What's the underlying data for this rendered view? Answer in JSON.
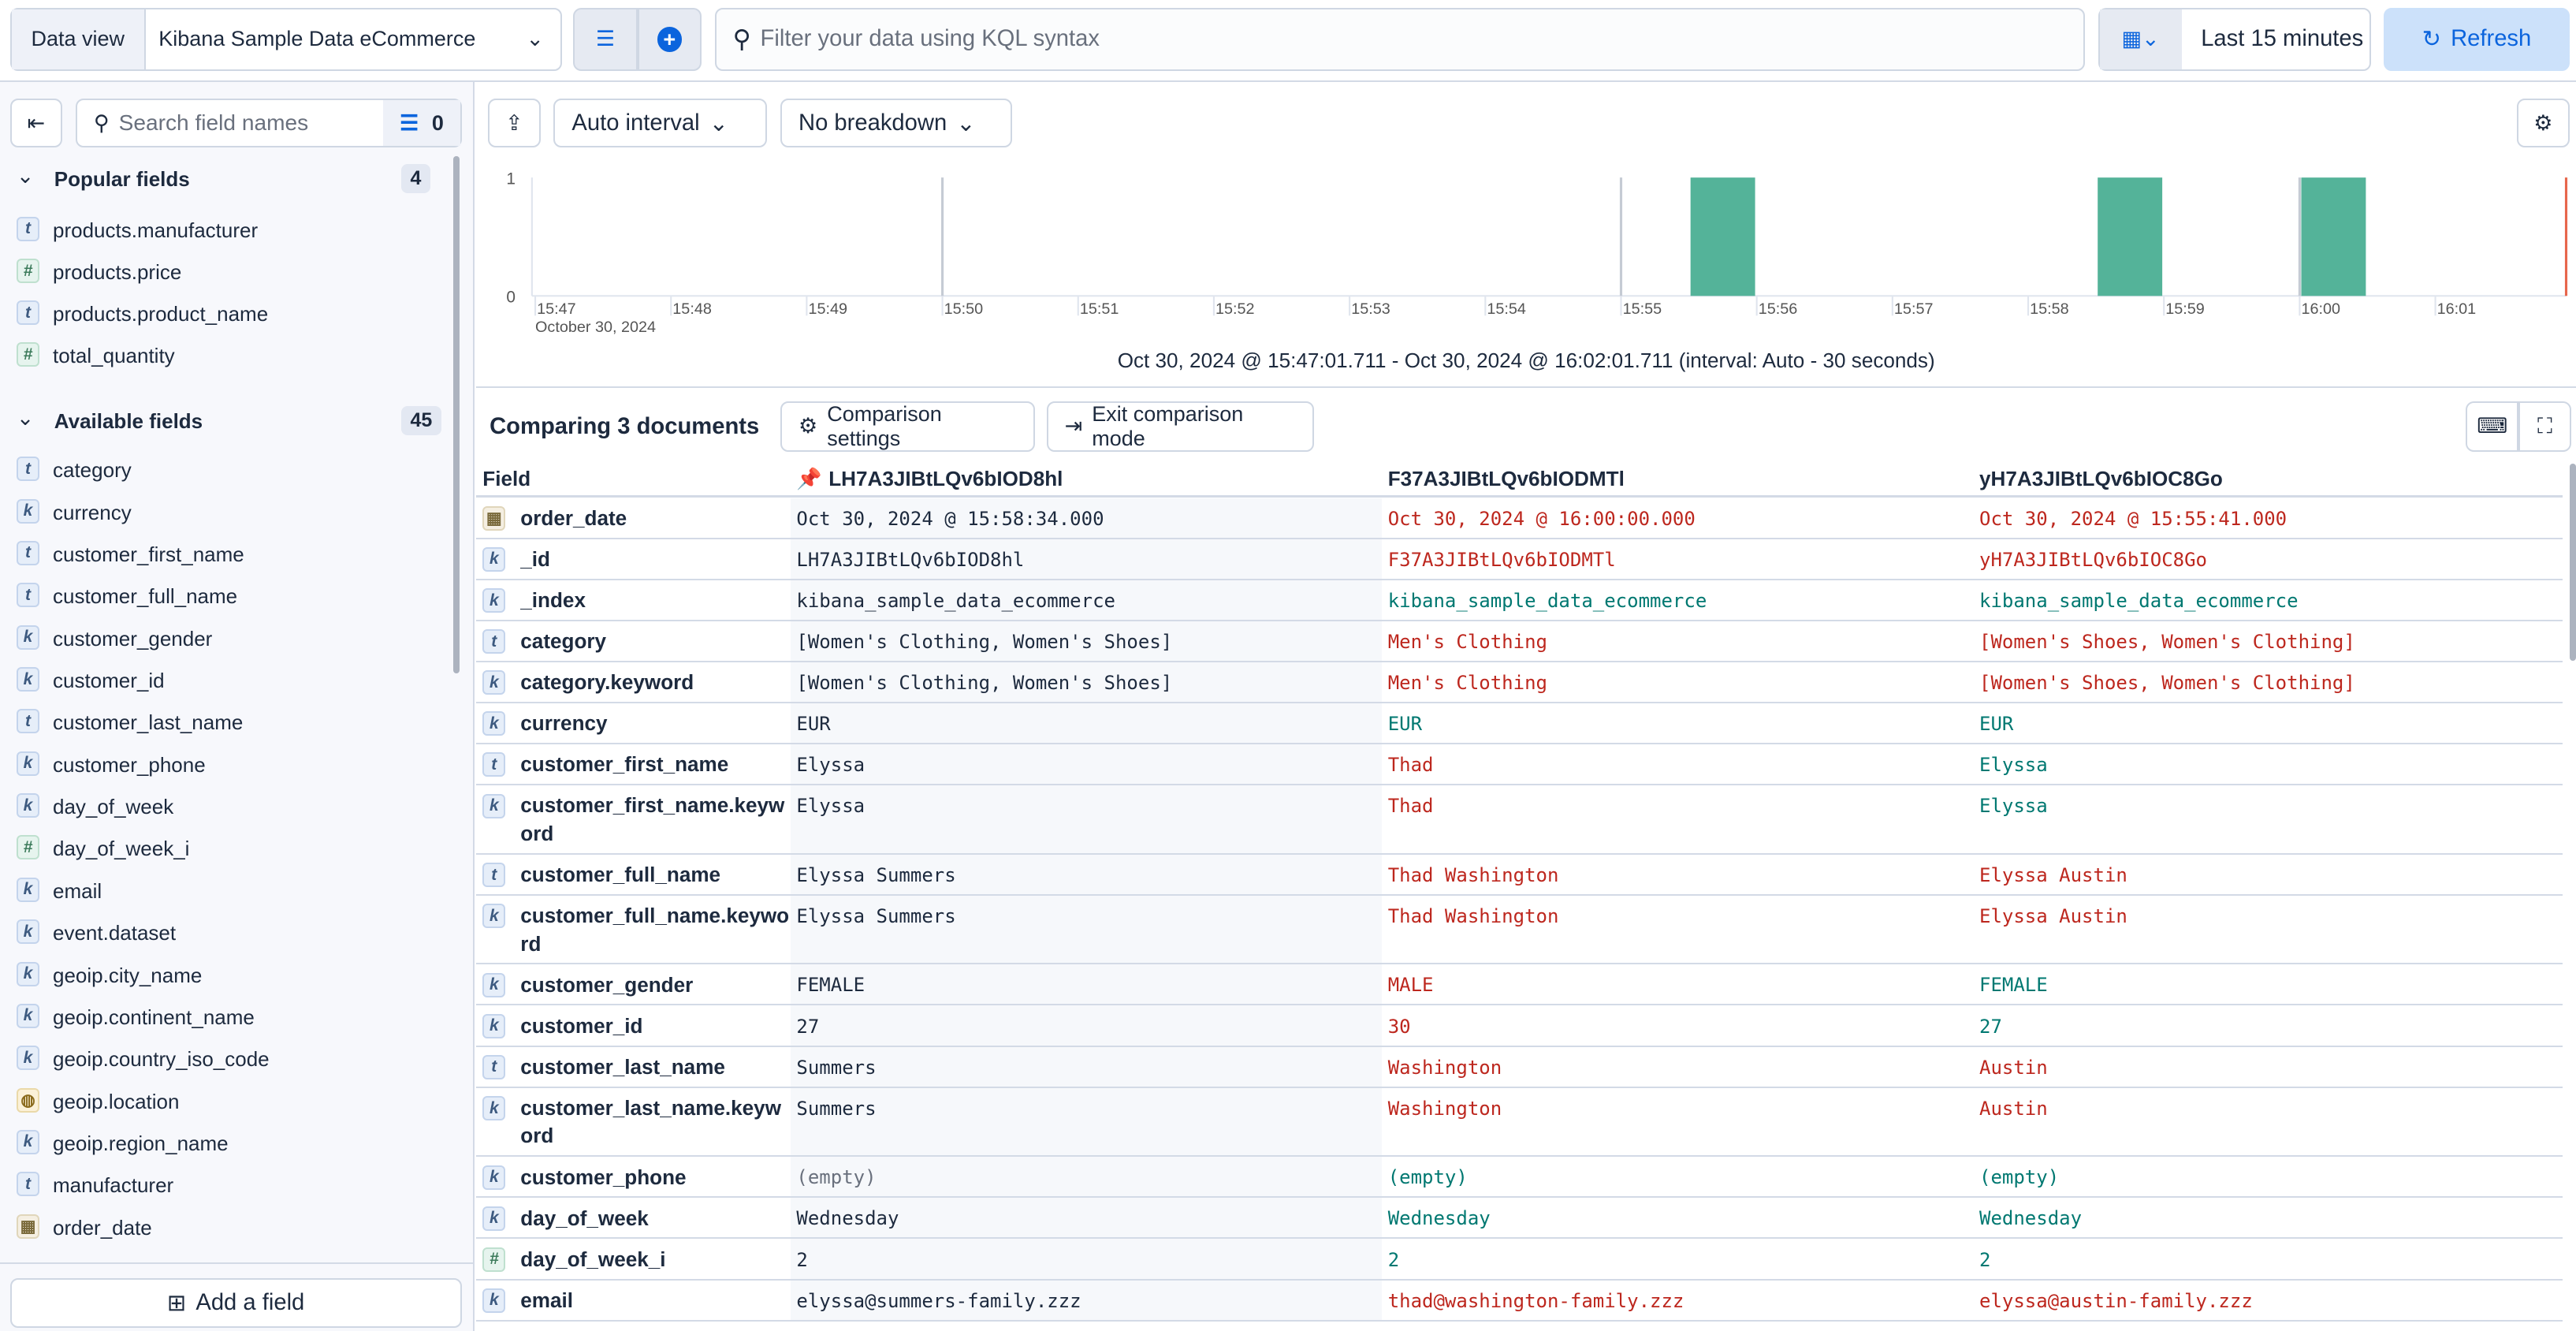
{
  "topbar": {
    "data_view_label": "Data view",
    "data_view_value": "Kibana Sample Data eCommerce",
    "query_placeholder": "Filter your data using KQL syntax",
    "time_range": "Last 15 minutes",
    "refresh_label": "Refresh"
  },
  "sidebar": {
    "search_placeholder": "Search field names",
    "filter_count": "0",
    "popular_title": "Popular fields",
    "popular_count": "4",
    "popular": [
      {
        "type": "t",
        "name": "products.manufacturer"
      },
      {
        "type": "#",
        "name": "products.price"
      },
      {
        "type": "t",
        "name": "products.product_name"
      },
      {
        "type": "#",
        "name": "total_quantity"
      }
    ],
    "available_title": "Available fields",
    "available_count": "45",
    "available": [
      {
        "type": "t",
        "name": "category"
      },
      {
        "type": "k",
        "name": "currency"
      },
      {
        "type": "t",
        "name": "customer_first_name"
      },
      {
        "type": "t",
        "name": "customer_full_name"
      },
      {
        "type": "k",
        "name": "customer_gender"
      },
      {
        "type": "k",
        "name": "customer_id"
      },
      {
        "type": "t",
        "name": "customer_last_name"
      },
      {
        "type": "k",
        "name": "customer_phone"
      },
      {
        "type": "k",
        "name": "day_of_week"
      },
      {
        "type": "#",
        "name": "day_of_week_i"
      },
      {
        "type": "k",
        "name": "email"
      },
      {
        "type": "k",
        "name": "event.dataset"
      },
      {
        "type": "k",
        "name": "geoip.city_name"
      },
      {
        "type": "k",
        "name": "geoip.continent_name"
      },
      {
        "type": "k",
        "name": "geoip.country_iso_code"
      },
      {
        "type": "geo",
        "name": "geoip.location"
      },
      {
        "type": "k",
        "name": "geoip.region_name"
      },
      {
        "type": "t",
        "name": "manufacturer"
      },
      {
        "type": "date",
        "name": "order_date"
      }
    ],
    "add_field_label": "Add a field"
  },
  "chart_toolbar": {
    "interval": "Auto interval",
    "breakdown": "No breakdown"
  },
  "chart_data": {
    "type": "bar",
    "y_ticks": [
      "0",
      "1"
    ],
    "ylim": [
      0,
      1
    ],
    "x_ticks": [
      "15:47",
      "15:48",
      "15:49",
      "15:50",
      "15:51",
      "15:52",
      "15:53",
      "15:54",
      "15:55",
      "15:56",
      "15:57",
      "15:58",
      "15:59",
      "16:00",
      "16:01"
    ],
    "x_sub_label": "October 30, 2024",
    "bars": [
      {
        "start": "15:55:30",
        "value": 1
      },
      {
        "start": "15:58:30",
        "value": 1
      },
      {
        "start": "16:00:00",
        "value": 1
      }
    ],
    "bar_color": "#54b399",
    "caption": "Oct 30, 2024 @ 15:47:01.711 - Oct 30, 2024 @ 16:02:01.711 (interval: Auto - 30 seconds)"
  },
  "comparison": {
    "title": "Comparing 3 documents",
    "settings_label": "Comparison settings",
    "exit_label": "Exit comparison mode",
    "field_header": "Field",
    "docs": [
      "LH7A3JIBtLQv6bIOD8hl",
      "F37A3JIBtLQv6bIODMTl",
      "yH7A3JIBtLQv6bIOC8Go"
    ],
    "colors": {
      "diff": "#bd271e",
      "same": "#007871"
    },
    "rows": [
      {
        "type": "date",
        "field": "order_date",
        "values": [
          "Oct 30, 2024 @ 15:58:34.000",
          "Oct 30, 2024 @ 16:00:00.000",
          "Oct 30, 2024 @ 15:55:41.000"
        ],
        "status": [
          "",
          "diff",
          "diff"
        ]
      },
      {
        "type": "k",
        "field": "_id",
        "values": [
          "LH7A3JIBtLQv6bIOD8hl",
          "F37A3JIBtLQv6bIODMTl",
          "yH7A3JIBtLQv6bIOC8Go"
        ],
        "status": [
          "",
          "diff",
          "diff"
        ]
      },
      {
        "type": "k",
        "field": "_index",
        "values": [
          "kibana_sample_data_ecommerce",
          "kibana_sample_data_ecommerce",
          "kibana_sample_data_ecommerce"
        ],
        "status": [
          "",
          "same",
          "same"
        ]
      },
      {
        "type": "t",
        "field": "category",
        "values": [
          "[Women's Clothing, Women's Shoes]",
          "Men's Clothing",
          "[Women's Shoes, Women's Clothing]"
        ],
        "status": [
          "",
          "diff",
          "diff"
        ]
      },
      {
        "type": "k",
        "field": "category.keyword",
        "values": [
          "[Women's Clothing, Women's Shoes]",
          "Men's Clothing",
          "[Women's Shoes, Women's Clothing]"
        ],
        "status": [
          "",
          "diff",
          "diff"
        ]
      },
      {
        "type": "k",
        "field": "currency",
        "values": [
          "EUR",
          "EUR",
          "EUR"
        ],
        "status": [
          "",
          "same",
          "same"
        ]
      },
      {
        "type": "t",
        "field": "customer_first_name",
        "values": [
          "Elyssa",
          "Thad",
          "Elyssa"
        ],
        "status": [
          "",
          "diff",
          "same"
        ]
      },
      {
        "type": "k",
        "field": "customer_first_name.keyword",
        "values": [
          "Elyssa",
          "Thad",
          "Elyssa"
        ],
        "status": [
          "",
          "diff",
          "same"
        ]
      },
      {
        "type": "t",
        "field": "customer_full_name",
        "values": [
          "Elyssa Summers",
          "Thad Washington",
          "Elyssa Austin"
        ],
        "status": [
          "",
          "diff",
          "diff"
        ]
      },
      {
        "type": "k",
        "field": "customer_full_name.keyword",
        "values": [
          "Elyssa Summers",
          "Thad Washington",
          "Elyssa Austin"
        ],
        "status": [
          "",
          "diff",
          "diff"
        ]
      },
      {
        "type": "k",
        "field": "customer_gender",
        "values": [
          "FEMALE",
          "MALE",
          "FEMALE"
        ],
        "status": [
          "",
          "diff",
          "same"
        ]
      },
      {
        "type": "k",
        "field": "customer_id",
        "values": [
          "27",
          "30",
          "27"
        ],
        "status": [
          "",
          "diff",
          "same"
        ]
      },
      {
        "type": "t",
        "field": "customer_last_name",
        "values": [
          "Summers",
          "Washington",
          "Austin"
        ],
        "status": [
          "",
          "diff",
          "diff"
        ]
      },
      {
        "type": "k",
        "field": "customer_last_name.keyword",
        "values": [
          "Summers",
          "Washington",
          "Austin"
        ],
        "status": [
          "",
          "diff",
          "diff"
        ]
      },
      {
        "type": "k",
        "field": "customer_phone",
        "values": [
          "(empty)",
          "(empty)",
          "(empty)"
        ],
        "status": [
          "empty",
          "same",
          "same"
        ]
      },
      {
        "type": "k",
        "field": "day_of_week",
        "values": [
          "Wednesday",
          "Wednesday",
          "Wednesday"
        ],
        "status": [
          "",
          "same",
          "same"
        ]
      },
      {
        "type": "#",
        "field": "day_of_week_i",
        "values": [
          "2",
          "2",
          "2"
        ],
        "status": [
          "",
          "same",
          "same"
        ]
      },
      {
        "type": "k",
        "field": "email",
        "values": [
          "elyssa@summers-family.zzz",
          "thad@washington-family.zzz",
          "elyssa@austin-family.zzz"
        ],
        "status": [
          "",
          "diff",
          "diff"
        ]
      }
    ]
  }
}
